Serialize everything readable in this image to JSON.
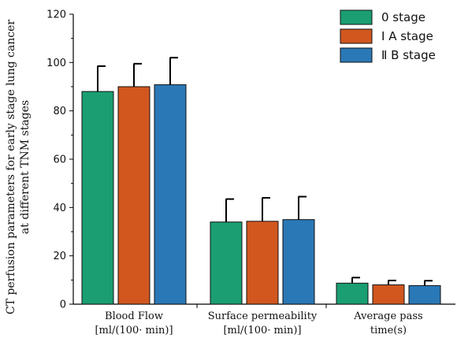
{
  "chart_data": {
    "type": "bar",
    "categories": [
      [
        "Blood Flow",
        "[ml/(100· min)]"
      ],
      [
        "Surface permeability",
        "[ml/(100· min)]"
      ],
      [
        "Average pass",
        "time(s)"
      ]
    ],
    "series": [
      {
        "name": "0 stage",
        "color": "#1a9e72",
        "values": [
          88,
          34,
          8.7
        ],
        "errors": [
          10.5,
          9.5,
          2.3
        ]
      },
      {
        "name": "Ⅰ A stage",
        "color": "#d1571f",
        "values": [
          90,
          34.3,
          8
        ],
        "errors": [
          9.5,
          9.7,
          1.8
        ]
      },
      {
        "name": "Ⅱ B stage",
        "color": "#2a78b6",
        "values": [
          90.8,
          35,
          7.7
        ],
        "errors": [
          11.2,
          9.5,
          2
        ]
      }
    ],
    "ylabel": [
      "CT perfusion parameters for early stage lung cancer",
      "at different TNM stages"
    ],
    "ylim": [
      0,
      120
    ],
    "yticks": [
      0,
      20,
      40,
      60,
      80,
      100,
      120
    ],
    "legend": "top-right",
    "grid": false
  }
}
